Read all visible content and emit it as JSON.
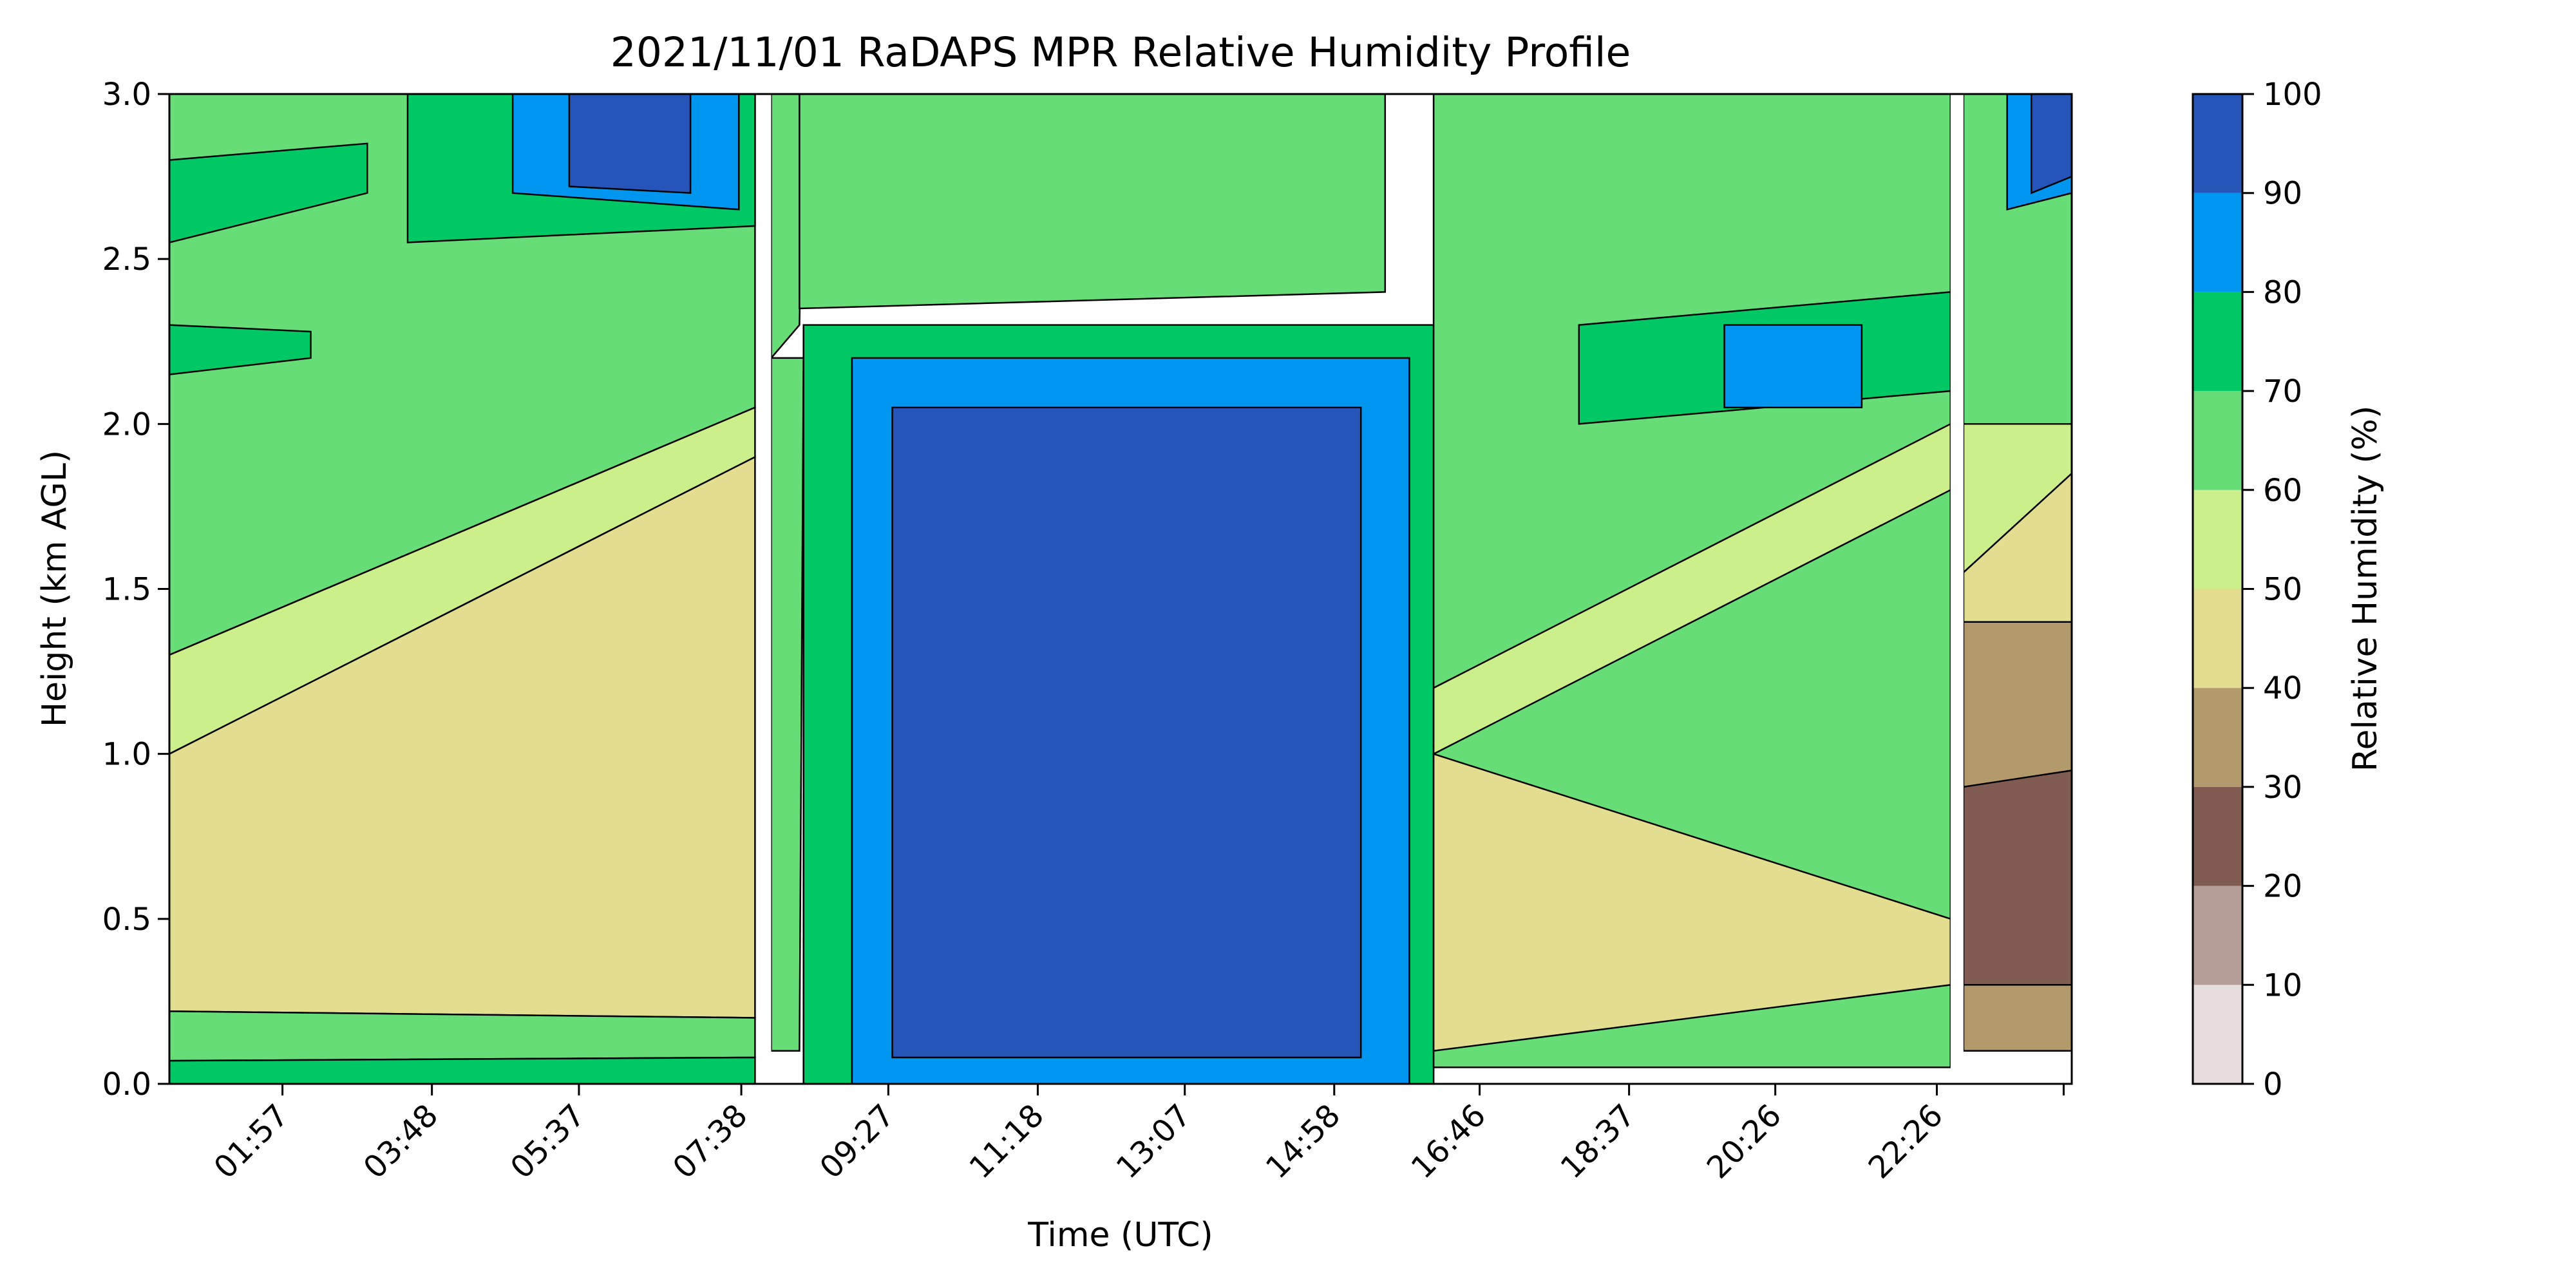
{
  "chart_data": {
    "type": "heatmap",
    "title": "2021/11/01 RaDAPS MPR Relative Humidity Profile",
    "xlabel": "Time (UTC)",
    "ylabel": "Height (km AGL)",
    "x_unit": "hours UTC",
    "xlim": [
      0.55,
      24.1
    ],
    "ylim": [
      0,
      3.0
    ],
    "x_ticks": [
      {
        "value": 1.95,
        "label": "01:57"
      },
      {
        "value": 3.8,
        "label": "03:48"
      },
      {
        "value": 5.62,
        "label": "05:37"
      },
      {
        "value": 7.63,
        "label": "07:38"
      },
      {
        "value": 9.45,
        "label": "09:27"
      },
      {
        "value": 11.3,
        "label": "11:18"
      },
      {
        "value": 13.12,
        "label": "13:07"
      },
      {
        "value": 14.97,
        "label": "14:58"
      },
      {
        "value": 16.77,
        "label": "16:46"
      },
      {
        "value": 18.62,
        "label": "18:37"
      },
      {
        "value": 20.43,
        "label": "20:26"
      },
      {
        "value": 22.43,
        "label": "22:26"
      },
      {
        "value": 24.0,
        "label": ""
      }
    ],
    "y_ticks": [
      {
        "value": 0.0,
        "label": "0.0"
      },
      {
        "value": 0.5,
        "label": "0.5"
      },
      {
        "value": 1.0,
        "label": "1.0"
      },
      {
        "value": 1.5,
        "label": "1.5"
      },
      {
        "value": 2.0,
        "label": "2.0"
      },
      {
        "value": 2.5,
        "label": "2.5"
      },
      {
        "value": 3.0,
        "label": "3.0"
      }
    ],
    "colorbar": {
      "label": "Relative Humidity (%)",
      "levels": [
        0,
        10,
        20,
        30,
        40,
        50,
        60,
        70,
        80,
        90,
        100
      ],
      "level_labels": [
        "0",
        "10",
        "20",
        "30",
        "40",
        "50",
        "60",
        "70",
        "80",
        "90",
        "100"
      ],
      "colors": [
        "#e6dedc",
        "#b59e97",
        "#7f5b52",
        "#b39a6d",
        "#e3dd8f",
        "#ccee8b",
        "#66dd77",
        "#00c864",
        "#0096f0",
        "#2654b8"
      ]
    },
    "data_gaps": [
      [
        7.82,
        8.0
      ],
      [
        22.6,
        22.76
      ]
    ],
    "regions": [
      {
        "level": 6,
        "points": [
          [
            0.55,
            1.3
          ],
          [
            7.8,
            2.05
          ],
          [
            7.8,
            3.0
          ],
          [
            0.55,
            3.0
          ]
        ]
      },
      {
        "level": 5,
        "points": [
          [
            0.55,
            1.0
          ],
          [
            7.8,
            1.9
          ],
          [
            7.8,
            2.05
          ],
          [
            0.55,
            1.3
          ]
        ]
      },
      {
        "level": 4,
        "points": [
          [
            0.55,
            0.22
          ],
          [
            7.8,
            0.2
          ],
          [
            7.8,
            1.9
          ],
          [
            0.55,
            1.0
          ]
        ]
      },
      {
        "level": 6,
        "points": [
          [
            0.55,
            0.07
          ],
          [
            7.8,
            0.08
          ],
          [
            7.8,
            0.2
          ],
          [
            0.55,
            0.22
          ]
        ]
      },
      {
        "level": 7,
        "points": [
          [
            0.55,
            0.0
          ],
          [
            7.8,
            0.0
          ],
          [
            7.8,
            0.08
          ],
          [
            0.55,
            0.07
          ]
        ]
      },
      {
        "level": 7,
        "points": [
          [
            0.55,
            2.55
          ],
          [
            3.0,
            2.7
          ],
          [
            3.0,
            2.85
          ],
          [
            0.55,
            2.8
          ]
        ]
      },
      {
        "level": 7,
        "points": [
          [
            0.55,
            2.15
          ],
          [
            2.3,
            2.2
          ],
          [
            2.3,
            2.28
          ],
          [
            0.55,
            2.3
          ]
        ]
      },
      {
        "level": 7,
        "points": [
          [
            3.5,
            2.55
          ],
          [
            7.8,
            2.6
          ],
          [
            7.8,
            3.0
          ],
          [
            3.5,
            3.0
          ]
        ]
      },
      {
        "level": 8,
        "points": [
          [
            4.8,
            2.7
          ],
          [
            7.6,
            2.65
          ],
          [
            7.6,
            3.0
          ],
          [
            4.8,
            3.0
          ]
        ]
      },
      {
        "level": 9,
        "points": [
          [
            5.5,
            2.72
          ],
          [
            7.0,
            2.7
          ],
          [
            7.0,
            3.0
          ],
          [
            5.5,
            3.0
          ]
        ]
      },
      {
        "level": 6,
        "points": [
          [
            8.0,
            2.2
          ],
          [
            8.35,
            2.3
          ],
          [
            8.4,
            3.0
          ],
          [
            8.0,
            3.0
          ]
        ]
      },
      {
        "level": 6,
        "points": [
          [
            8.0,
            0.1
          ],
          [
            8.35,
            0.1
          ],
          [
            8.4,
            2.2
          ],
          [
            8.0,
            2.2
          ]
        ]
      },
      {
        "level": 6,
        "points": [
          [
            8.35,
            2.35
          ],
          [
            15.6,
            2.4
          ],
          [
            15.6,
            3.0
          ],
          [
            8.35,
            3.0
          ]
        ]
      },
      {
        "level": 7,
        "points": [
          [
            8.4,
            0.0
          ],
          [
            16.2,
            0.0
          ],
          [
            16.2,
            2.3
          ],
          [
            8.4,
            2.3
          ]
        ]
      },
      {
        "level": 8,
        "points": [
          [
            9.0,
            0.0
          ],
          [
            15.9,
            0.0
          ],
          [
            15.9,
            2.2
          ],
          [
            9.0,
            2.2
          ]
        ]
      },
      {
        "level": 9,
        "points": [
          [
            9.5,
            0.08
          ],
          [
            15.3,
            0.08
          ],
          [
            15.3,
            2.05
          ],
          [
            9.5,
            2.05
          ]
        ]
      },
      {
        "level": 6,
        "points": [
          [
            16.2,
            0.05
          ],
          [
            22.6,
            0.05
          ],
          [
            22.6,
            3.0
          ],
          [
            16.2,
            3.0
          ]
        ]
      },
      {
        "level": 4,
        "points": [
          [
            16.2,
            0.1
          ],
          [
            22.6,
            0.3
          ],
          [
            22.6,
            0.5
          ],
          [
            16.2,
            1.0
          ]
        ]
      },
      {
        "level": 5,
        "points": [
          [
            16.2,
            1.0
          ],
          [
            22.6,
            1.8
          ],
          [
            22.6,
            2.0
          ],
          [
            16.2,
            1.2
          ]
        ]
      },
      {
        "level": 7,
        "points": [
          [
            18.0,
            2.0
          ],
          [
            22.6,
            2.1
          ],
          [
            22.6,
            2.4
          ],
          [
            18.0,
            2.3
          ]
        ]
      },
      {
        "level": 8,
        "points": [
          [
            19.8,
            2.05
          ],
          [
            21.5,
            2.05
          ],
          [
            21.5,
            2.3
          ],
          [
            19.8,
            2.3
          ]
        ]
      },
      {
        "level": 6,
        "points": [
          [
            22.76,
            2.0
          ],
          [
            24.1,
            2.0
          ],
          [
            24.1,
            3.0
          ],
          [
            22.76,
            3.0
          ]
        ]
      },
      {
        "level": 5,
        "points": [
          [
            22.76,
            1.55
          ],
          [
            24.1,
            1.85
          ],
          [
            24.1,
            2.0
          ],
          [
            22.76,
            2.0
          ]
        ]
      },
      {
        "level": 4,
        "points": [
          [
            22.76,
            1.4
          ],
          [
            24.1,
            1.4
          ],
          [
            24.1,
            1.85
          ],
          [
            22.76,
            1.55
          ]
        ]
      },
      {
        "level": 3,
        "points": [
          [
            22.76,
            0.1
          ],
          [
            24.1,
            0.1
          ],
          [
            24.1,
            1.4
          ],
          [
            22.76,
            1.4
          ]
        ]
      },
      {
        "level": 2,
        "points": [
          [
            22.76,
            0.3
          ],
          [
            24.1,
            0.3
          ],
          [
            24.1,
            0.95
          ],
          [
            22.76,
            0.9
          ]
        ]
      },
      {
        "level": 8,
        "points": [
          [
            23.3,
            2.65
          ],
          [
            24.1,
            2.7
          ],
          [
            24.1,
            3.0
          ],
          [
            23.3,
            3.0
          ]
        ]
      },
      {
        "level": 9,
        "points": [
          [
            23.6,
            2.7
          ],
          [
            24.1,
            2.75
          ],
          [
            24.1,
            3.0
          ],
          [
            23.6,
            3.0
          ]
        ]
      }
    ]
  }
}
